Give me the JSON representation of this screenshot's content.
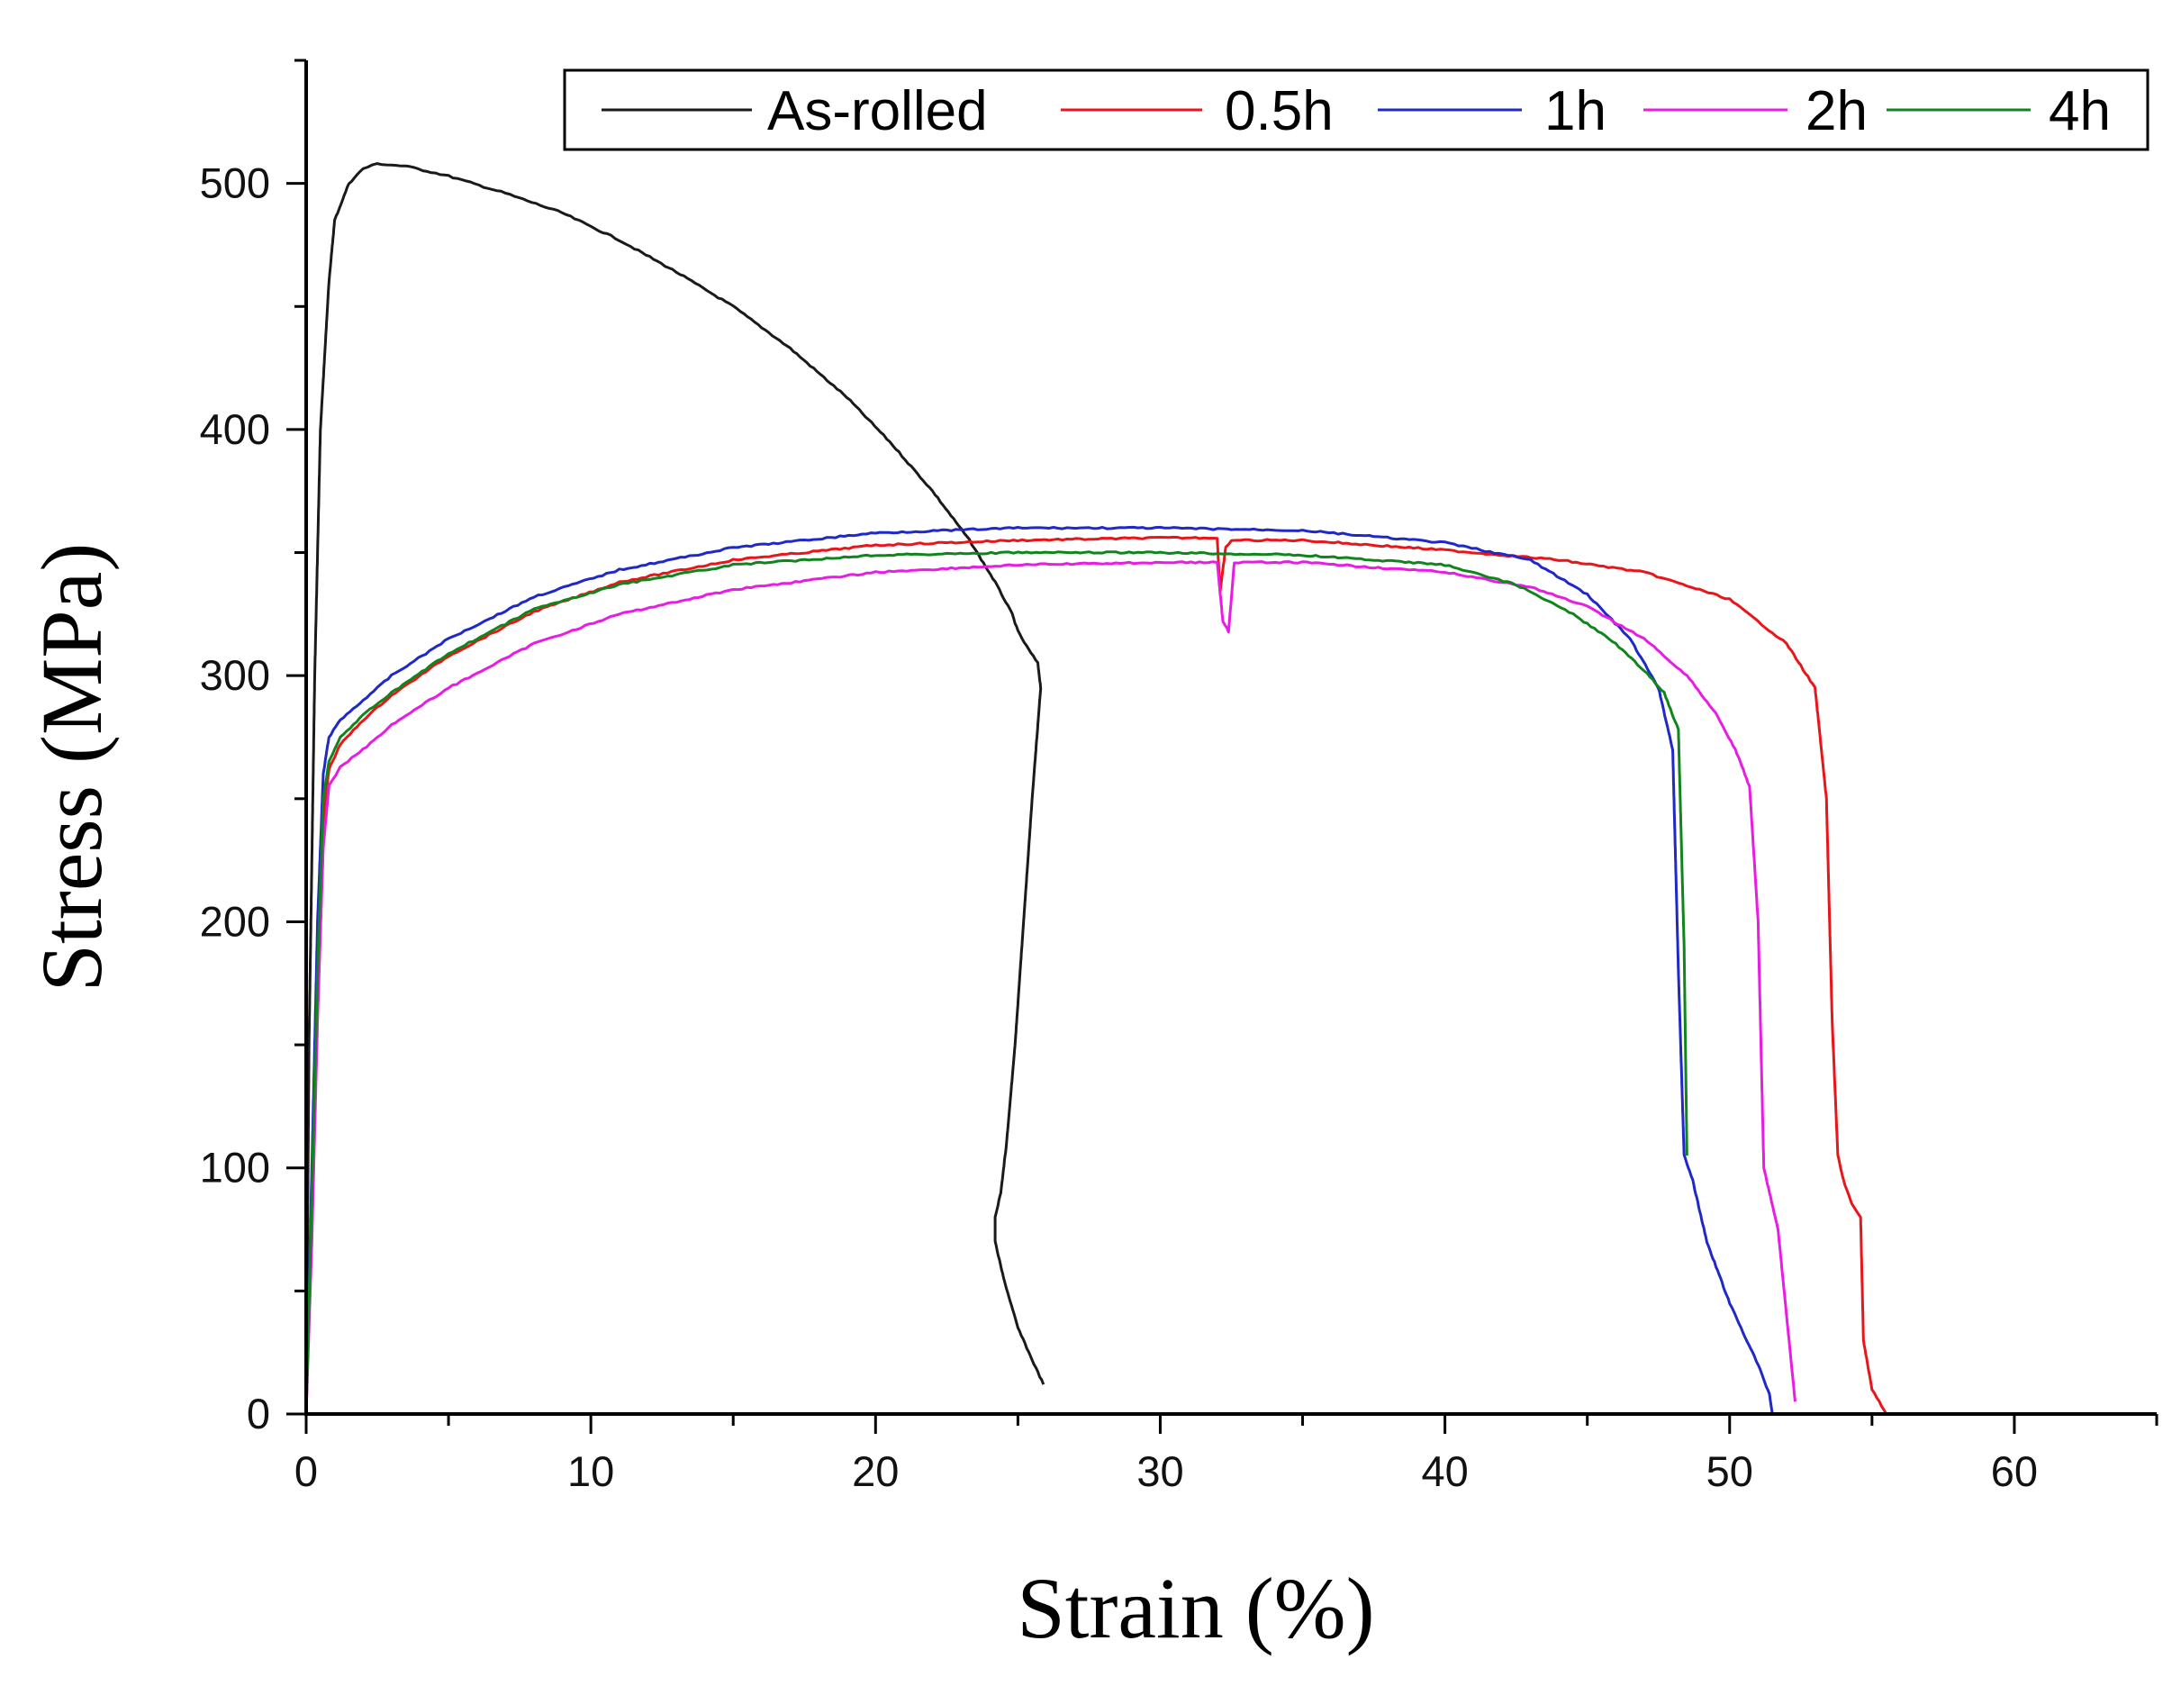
{
  "chart_data": {
    "type": "line",
    "title": "",
    "xlabel": "Strain (%)",
    "ylabel": "Stress (MPa)",
    "xlim": [
      0,
      65
    ],
    "ylim": [
      0,
      550
    ],
    "xticks": [
      0,
      10,
      20,
      30,
      40,
      50,
      60
    ],
    "xtick_labels": [
      "0",
      "10",
      "20",
      "30",
      "40",
      "50",
      "60"
    ],
    "yticks": [
      0,
      100,
      200,
      300,
      400,
      500
    ],
    "ytick_labels": [
      "0",
      "100",
      "200",
      "300",
      "400",
      "500"
    ],
    "grid": false,
    "legend_position": "top-right",
    "series": [
      {
        "name": "As-rolled",
        "color": "#1a1a1a",
        "x": [
          0,
          0.1,
          0.3,
          0.5,
          0.8,
          1.0,
          1.5,
          2.0,
          2.5,
          3.5,
          5,
          7,
          9,
          11,
          13,
          15,
          17,
          19,
          20.5,
          22,
          23.3,
          24.2,
          24.8,
          25.0,
          25.3,
          25.7,
          25.8,
          25.5,
          25.2,
          24.9,
          24.6,
          24.4,
          24.2,
          24.2,
          24.5,
          25.0,
          25.5,
          25.9
        ],
        "y": [
          0,
          150,
          300,
          400,
          460,
          485,
          500,
          506,
          508,
          507,
          503,
          496,
          488,
          477,
          464,
          450,
          433,
          413,
          395,
          375,
          355,
          338,
          325,
          318,
          312,
          305,
          295,
          250,
          200,
          150,
          110,
          90,
          80,
          70,
          55,
          35,
          22,
          12
        ]
      },
      {
        "name": "0.5h",
        "color": "#e8161b",
        "x": [
          0,
          0.2,
          0.4,
          0.6,
          0.8,
          1.2,
          2,
          3,
          5,
          8,
          11,
          15,
          20,
          25,
          30,
          32.0,
          32.1,
          32.3,
          32.5,
          35,
          40,
          44,
          47,
          50,
          52,
          53.0,
          53.4,
          53.6,
          53.8,
          54.0,
          54.3,
          54.6,
          54.7,
          55.0,
          55.5
        ],
        "y": [
          0,
          80,
          170,
          240,
          262,
          272,
          282,
          292,
          308,
          326,
          338,
          347,
          353,
          355,
          356,
          356,
          334,
          352,
          355,
          355,
          351,
          347,
          342,
          331,
          313,
          295,
          250,
          160,
          105,
          95,
          85,
          80,
          30,
          10,
          0
        ]
      },
      {
        "name": "1h",
        "color": "#1f28c8",
        "x": [
          0,
          0.2,
          0.4,
          0.6,
          0.8,
          1.2,
          2,
          3,
          5,
          8,
          11,
          15,
          20,
          25,
          30,
          35,
          40,
          43,
          45,
          46.5,
          47.5,
          48.0,
          48.2,
          48.4,
          48.7,
          49.2,
          50.0,
          51.0,
          51.4,
          51.5
        ],
        "y": [
          0,
          100,
          200,
          260,
          275,
          282,
          290,
          300,
          315,
          332,
          343,
          352,
          358,
          360,
          360,
          359,
          354,
          347,
          333,
          315,
          295,
          270,
          180,
          105,
          95,
          70,
          45,
          20,
          8,
          0
        ]
      },
      {
        "name": "2h",
        "color": "#e81ce2",
        "x": [
          0,
          0.2,
          0.4,
          0.6,
          0.8,
          1.2,
          2,
          3,
          5,
          8,
          11,
          15,
          20,
          25,
          30,
          32.0,
          32.2,
          32.4,
          32.6,
          35,
          40,
          43,
          45,
          47,
          48.5,
          49.5,
          50.2,
          50.7,
          51.0,
          51.2,
          51.4,
          51.7,
          52.0,
          52.3
        ],
        "y": [
          0,
          70,
          160,
          230,
          255,
          263,
          270,
          280,
          295,
          313,
          325,
          335,
          342,
          345,
          346,
          346,
          322,
          318,
          346,
          346,
          342,
          336,
          328,
          315,
          300,
          285,
          270,
          255,
          200,
          100,
          90,
          75,
          40,
          5
        ]
      },
      {
        "name": "4h",
        "color": "#11851d",
        "x": [
          0,
          0.2,
          0.4,
          0.6,
          0.8,
          1.2,
          2,
          3,
          5,
          8,
          11,
          15,
          20,
          25,
          30,
          35,
          40,
          42.5,
          44.5,
          46.0,
          47.0,
          47.7,
          48.2,
          48.4,
          48.5
        ],
        "y": [
          0,
          90,
          180,
          250,
          265,
          275,
          284,
          293,
          309,
          327,
          337,
          345,
          349,
          350,
          350,
          349,
          345,
          337,
          325,
          313,
          302,
          293,
          278,
          190,
          105
        ]
      }
    ]
  }
}
